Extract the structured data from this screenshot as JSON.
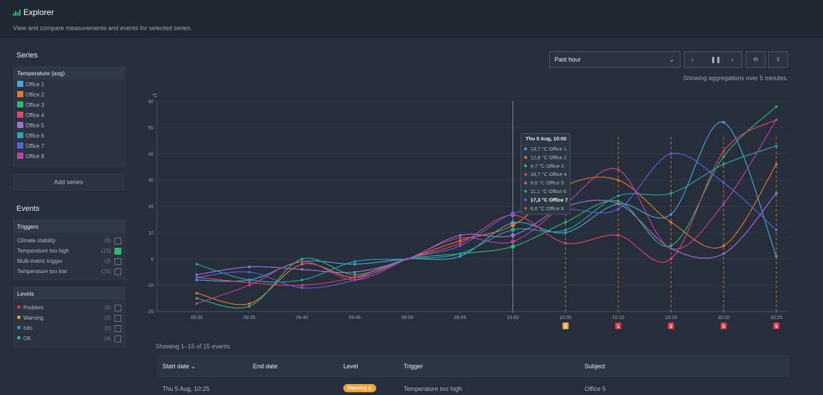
{
  "header": {
    "title": "Explorer",
    "subtitle": "View and compare measurements and events for selected series."
  },
  "sidebar": {
    "series_heading": "Series",
    "series_group": "Temperature (avg)",
    "add_series": "Add series",
    "events_heading": "Events",
    "triggers": {
      "title": "Triggers",
      "items": [
        {
          "name": "Climate stability",
          "count": "(0)",
          "checked": false
        },
        {
          "name": "Temperature too high",
          "count": "(15)",
          "checked": true
        },
        {
          "name": "Multi-metric trigger",
          "count": "(3)",
          "checked": false
        },
        {
          "name": "Temperature too low",
          "count": "(26)",
          "checked": false
        }
      ]
    },
    "levels": {
      "title": "Levels",
      "items": [
        {
          "name": "Problem",
          "count": "(8)",
          "color": "#e0393e"
        },
        {
          "name": "Warning",
          "count": "(3)",
          "color": "#f0a53a"
        },
        {
          "name": "Info",
          "count": "(0)",
          "color": "#2a9fd8"
        },
        {
          "name": "OK",
          "count": "(4)",
          "color": "#2eb872"
        }
      ]
    }
  },
  "controls": {
    "range": "Past hour",
    "aggregation_note": "Showing aggregations over 5 minutes."
  },
  "chart_data": {
    "type": "line",
    "y_unit": "°C",
    "categories": [
      "09:30",
      "09:35",
      "09:40",
      "09:45",
      "09:50",
      "09:55",
      "10:00",
      "10:05",
      "10:10",
      "10:15",
      "10:20",
      "10:25"
    ],
    "ylim": [
      -20,
      60
    ],
    "yticks": [
      -20,
      -10,
      0,
      10,
      20,
      30,
      40,
      50,
      60
    ],
    "grid": true,
    "series": [
      {
        "name": "Office 1",
        "color": "#4aa3dc",
        "values": [
          -8,
          -8,
          -1,
          -2,
          0,
          1,
          13.7,
          10,
          21,
          17,
          52,
          1
        ]
      },
      {
        "name": "Office 2",
        "color": "#e8772e",
        "values": [
          -13,
          -17,
          -2,
          -7,
          0,
          7,
          12.8,
          28,
          30,
          14,
          5,
          36
        ]
      },
      {
        "name": "Office 3",
        "color": "#2eb872",
        "values": [
          -15,
          -18,
          0,
          -6,
          0,
          2,
          4.7,
          14,
          22,
          5,
          39,
          58
        ]
      },
      {
        "name": "Office 4",
        "color": "#e8416b",
        "values": [
          -7,
          -9,
          -10,
          -7,
          0,
          6,
          16.7,
          6,
          9,
          0,
          41,
          53
        ]
      },
      {
        "name": "Office 5",
        "color": "#a070d8",
        "values": [
          -6,
          -3,
          -4,
          -5,
          0,
          9,
          9.0,
          20,
          21,
          4,
          2,
          25
        ]
      },
      {
        "name": "Office 6",
        "color": "#26a6a8",
        "values": [
          -2,
          -8,
          -8,
          -1,
          0,
          2,
          11.1,
          11,
          24,
          25,
          36,
          43
        ]
      },
      {
        "name": "Office 7",
        "color": "#5b5fe8",
        "values": [
          -7,
          -5,
          -11,
          -8,
          0,
          5,
          17.3,
          19,
          19,
          40,
          29,
          11
        ]
      },
      {
        "name": "Office 8",
        "color": "#c2409f",
        "values": [
          -17,
          -10,
          -1,
          -8,
          0,
          8,
          6.6,
          21,
          34,
          4,
          21,
          53
        ]
      }
    ],
    "tooltip": {
      "title": "Thu 5 Aug, 10:00",
      "x": "10:00",
      "items": [
        "13,7 °C",
        "12,8 °C",
        "4,7 °C",
        "16,7 °C",
        "9,0 °C",
        "11,1 °C",
        "17,3 °C",
        "6,6 °C"
      ]
    },
    "event_markers": [
      {
        "x": "10:05",
        "label": "3",
        "color": "#f0a53a"
      },
      {
        "x": "10:10",
        "label": "1",
        "color": "#e0393e"
      },
      {
        "x": "10:15",
        "label": "3",
        "color": "#e0393e"
      },
      {
        "x": "10:20",
        "label": "5",
        "color": "#e0393e"
      },
      {
        "x": "10:25",
        "label": "5",
        "color": "#e0393e"
      }
    ]
  },
  "events_table": {
    "summary": "Showing 1–15 of 15 events",
    "columns": [
      "Start date ⌄",
      "End date",
      "Level",
      "Trigger",
      "Subject"
    ],
    "rows": [
      {
        "start": "Thu 5 Aug, 10:25",
        "level": "Warning ⚠",
        "trigger": "Temperature too high",
        "subject": "Office 5"
      }
    ]
  }
}
